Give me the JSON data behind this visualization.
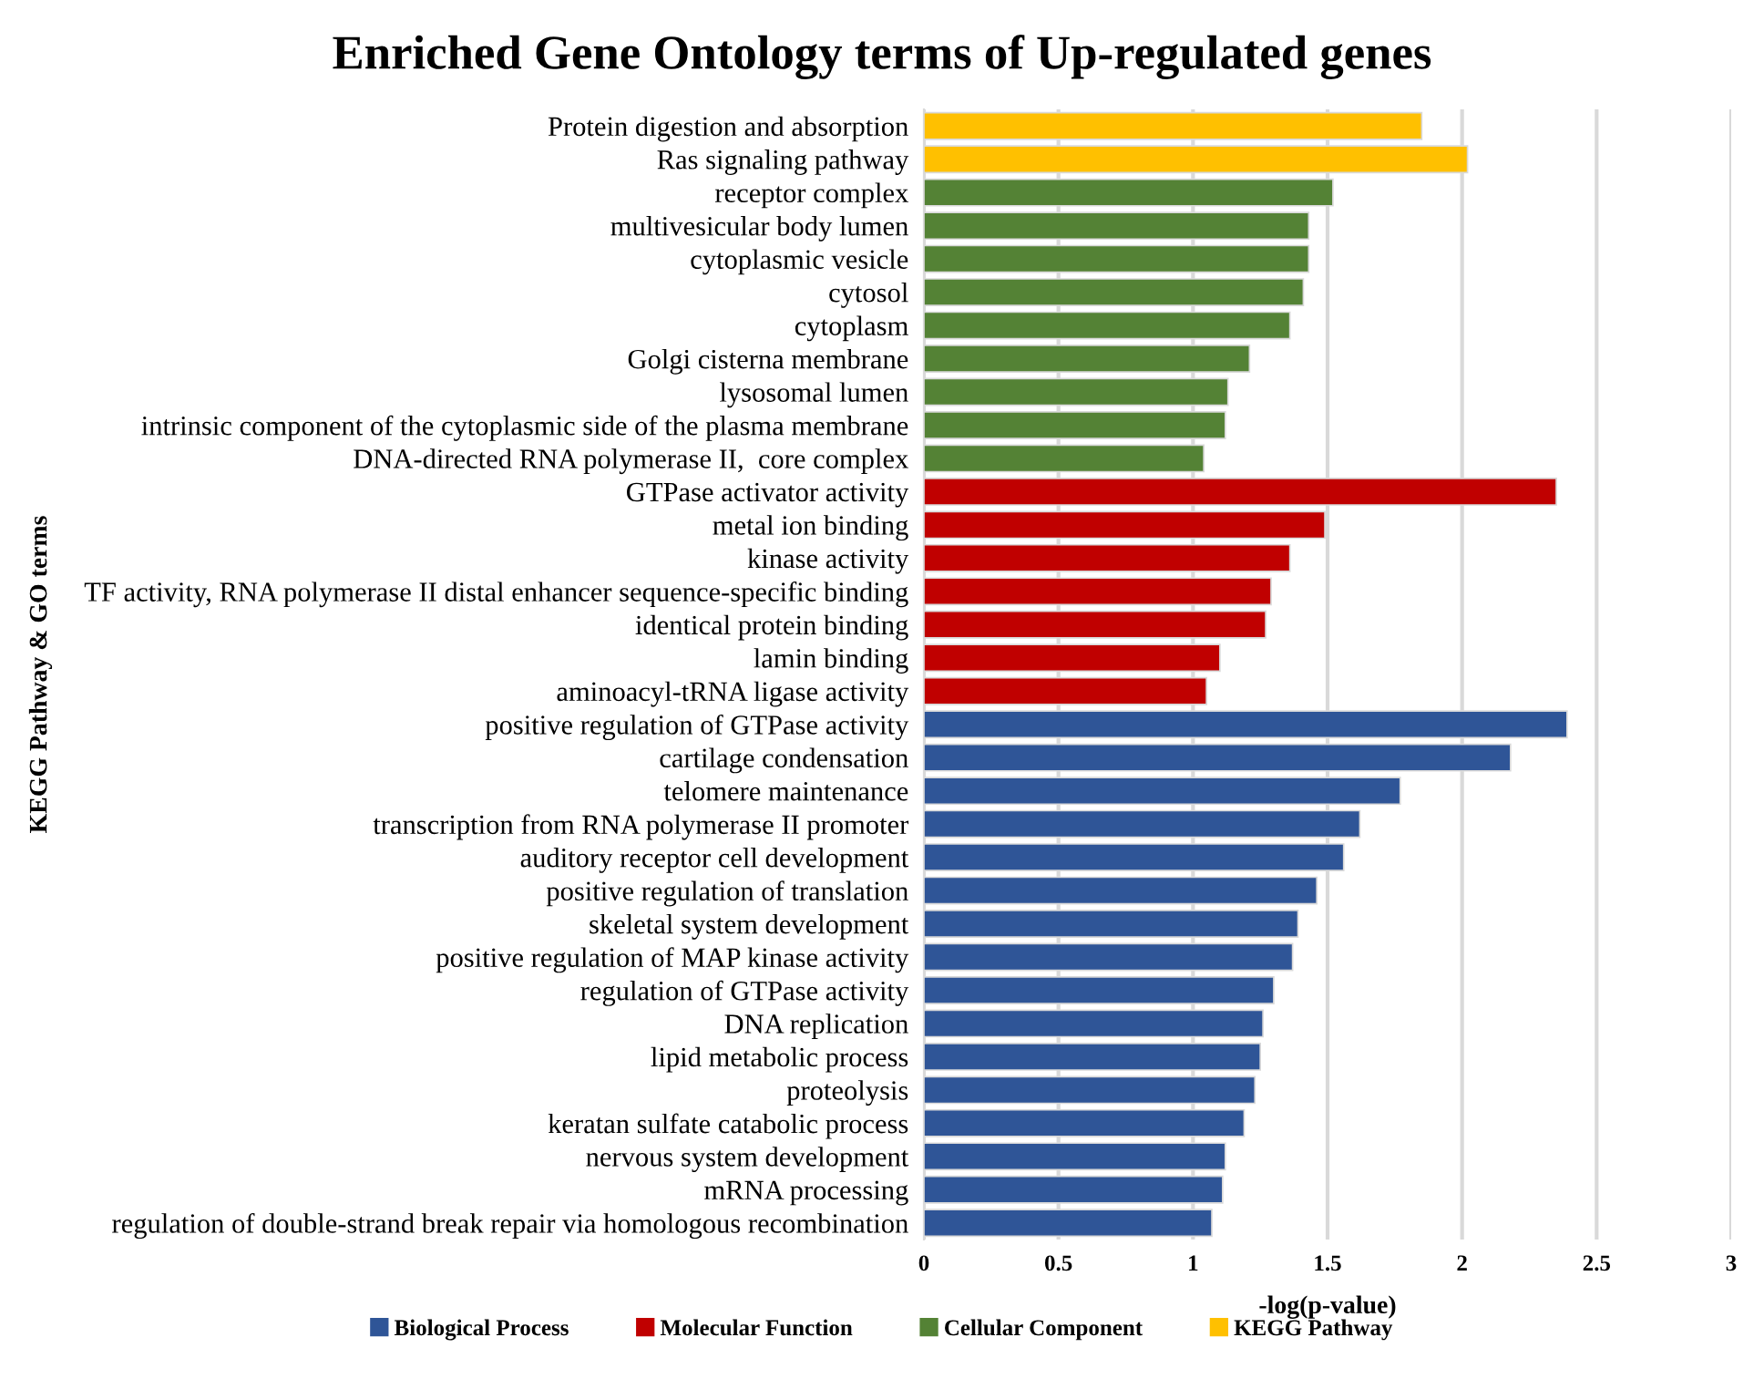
{
  "chart_data": {
    "type": "bar",
    "orientation": "horizontal",
    "title": "Enriched Gene Ontology terms of Up-regulated genes",
    "xlabel": "-log(p-value)",
    "ylabel": "KEGG Pathway & GO terms",
    "categories": [
      "Protein digestion and absorption",
      "Ras signaling pathway",
      "receptor complex",
      "multivesicular body lumen",
      "cytoplasmic vesicle",
      "cytosol",
      "cytoplasm",
      "Golgi cisterna membrane",
      "lysosomal lumen",
      "intrinsic component of the cytoplasmic side of the plasma membrane",
      "DNA-directed RNA polymerase II,  core complex",
      "GTPase activator activity",
      "metal ion binding",
      "kinase activity",
      "TF activity, RNA polymerase II distal enhancer sequence-specific binding",
      "identical protein binding",
      "lamin binding",
      "aminoacyl-tRNA ligase activity",
      "positive regulation of GTPase activity",
      "cartilage condensation",
      "telomere maintenance",
      "transcription from RNA polymerase II promoter",
      "auditory receptor cell development",
      "positive regulation of translation",
      "skeletal system development",
      "positive regulation of MAP kinase activity",
      "regulation of GTPase activity",
      "DNA replication",
      "lipid metabolic process",
      "proteolysis",
      "keratan sulfate catabolic process",
      "nervous system development",
      "mRNA processing",
      "regulation of double-strand break repair via homologous recombination"
    ],
    "series": [
      {
        "name": "Biological Process",
        "color": "#2f5597",
        "values": [
          null,
          null,
          null,
          null,
          null,
          null,
          null,
          null,
          null,
          null,
          null,
          null,
          null,
          null,
          null,
          null,
          null,
          null,
          2.39,
          2.18,
          1.77,
          1.62,
          1.56,
          1.46,
          1.39,
          1.37,
          1.3,
          1.26,
          1.25,
          1.23,
          1.19,
          1.12,
          1.11,
          1.07
        ]
      },
      {
        "name": "Molecular Function",
        "color": "#c00000",
        "values": [
          null,
          null,
          null,
          null,
          null,
          null,
          null,
          null,
          null,
          null,
          null,
          2.35,
          1.49,
          1.36,
          1.29,
          1.27,
          1.1,
          1.05,
          null,
          null,
          null,
          null,
          null,
          null,
          null,
          null,
          null,
          null,
          null,
          null,
          null,
          null,
          null,
          null
        ]
      },
      {
        "name": "Cellular Component",
        "color": "#548235",
        "values": [
          null,
          null,
          1.52,
          1.43,
          1.43,
          1.41,
          1.36,
          1.21,
          1.13,
          1.12,
          1.04,
          null,
          null,
          null,
          null,
          null,
          null,
          null,
          null,
          null,
          null,
          null,
          null,
          null,
          null,
          null,
          null,
          null,
          null,
          null,
          null,
          null,
          null,
          null
        ]
      },
      {
        "name": "KEGG Pathway",
        "color": "#ffc000",
        "values": [
          1.85,
          2.02,
          null,
          null,
          null,
          null,
          null,
          null,
          null,
          null,
          null,
          null,
          null,
          null,
          null,
          null,
          null,
          null,
          null,
          null,
          null,
          null,
          null,
          null,
          null,
          null,
          null,
          null,
          null,
          null,
          null,
          null,
          null,
          null
        ]
      }
    ],
    "xlim": [
      0,
      3
    ],
    "xticks": [
      0,
      0.5,
      1,
      1.5,
      2,
      2.5,
      3
    ],
    "grid": "x",
    "legend": "bottom"
  }
}
